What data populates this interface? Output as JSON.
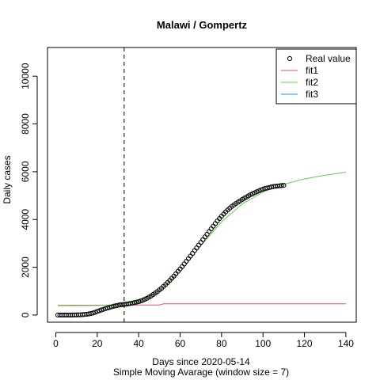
{
  "chart_data": {
    "type": "line",
    "title": "Malawi / Gompertz",
    "xlabel": "Days since 2020-05-14",
    "subtitle": "Simple Moving Avarage (window size = 7)",
    "ylabel": "Daily cases",
    "xlim": [
      -4,
      145
    ],
    "ylim": [
      -300,
      11200
    ],
    "x_ticks": [
      0,
      20,
      40,
      60,
      80,
      100,
      120,
      140
    ],
    "y_ticks": [
      0,
      2000,
      4000,
      6000,
      8000,
      10000
    ],
    "vline_x": 33,
    "colors": {
      "real": "#000000",
      "fit1": "#DF536B",
      "fit2": "#61D04F",
      "fit3": "#2297E6",
      "vline": "#000000"
    },
    "legend": {
      "position": "top-right",
      "entries": [
        "Real value",
        "fit1",
        "fit2",
        "fit3"
      ]
    },
    "series": [
      {
        "name": "Real value",
        "style": "points",
        "x": [
          1,
          2,
          3,
          4,
          5,
          6,
          7,
          8,
          9,
          10,
          11,
          12,
          13,
          14,
          15,
          16,
          17,
          18,
          19,
          20,
          21,
          22,
          23,
          24,
          25,
          26,
          27,
          28,
          29,
          30,
          31,
          32,
          33,
          34,
          35,
          36,
          37,
          38,
          39,
          40,
          41,
          42,
          43,
          44,
          45,
          46,
          47,
          48,
          49,
          50,
          51,
          52,
          53,
          54,
          55,
          56,
          57,
          58,
          59,
          60,
          61,
          62,
          63,
          64,
          65,
          66,
          67,
          68,
          69,
          70,
          71,
          72,
          73,
          74,
          75,
          76,
          77,
          78,
          79,
          80,
          81,
          82,
          83,
          84,
          85,
          86,
          87,
          88,
          89,
          90,
          91,
          92,
          93,
          94,
          95,
          96,
          97,
          98,
          99,
          100,
          101,
          102,
          103,
          104,
          105,
          106,
          107,
          108,
          109,
          110
        ],
        "y": [
          0,
          0,
          0,
          0,
          0,
          0,
          1,
          2,
          4,
          6,
          9,
          12,
          17,
          24,
          34,
          48,
          65,
          88,
          116,
          152,
          180,
          210,
          240,
          270,
          295,
          320,
          345,
          370,
          390,
          410,
          425,
          435,
          445,
          455,
          470,
          485,
          500,
          520,
          540,
          560,
          590,
          620,
          660,
          700,
          750,
          800,
          860,
          920,
          980,
          1050,
          1120,
          1200,
          1280,
          1360,
          1450,
          1540,
          1630,
          1730,
          1830,
          1930,
          2030,
          2140,
          2250,
          2360,
          2470,
          2580,
          2700,
          2810,
          2930,
          3040,
          3160,
          3270,
          3380,
          3500,
          3610,
          3720,
          3830,
          3940,
          4040,
          4140,
          4230,
          4320,
          4400,
          4480,
          4550,
          4610,
          4670,
          4730,
          4780,
          4840,
          4890,
          4940,
          4990,
          5040,
          5080,
          5120,
          5160,
          5200,
          5240,
          5270,
          5300,
          5320,
          5340,
          5360,
          5380,
          5390,
          5400,
          5410,
          5420,
          5430
        ]
      },
      {
        "name": "fit1",
        "style": "line",
        "x": [
          1,
          10,
          20,
          30,
          40,
          50,
          52,
          60,
          80,
          100,
          120,
          140
        ],
        "y": [
          410,
          412,
          414,
          417,
          420,
          420,
          470,
          470,
          470,
          470,
          470,
          470
        ]
      },
      {
        "name": "fit2",
        "style": "line",
        "x": [
          1,
          10,
          20,
          30,
          40,
          50,
          60,
          70,
          80,
          90,
          100,
          110,
          120,
          130,
          140
        ],
        "y": [
          390,
          390,
          400,
          430,
          560,
          1000,
          1800,
          2900,
          3900,
          4650,
          5150,
          5470,
          5700,
          5850,
          5980
        ]
      },
      {
        "name": "fit3",
        "style": "line",
        "x": [],
        "y": []
      }
    ]
  }
}
